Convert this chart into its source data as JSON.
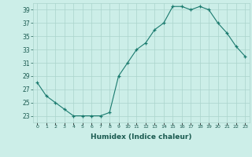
{
  "x": [
    0,
    1,
    2,
    3,
    4,
    5,
    6,
    7,
    8,
    9,
    10,
    11,
    12,
    13,
    14,
    15,
    16,
    17,
    18,
    19,
    20,
    21,
    22,
    23
  ],
  "y": [
    28,
    26,
    25,
    24,
    23,
    23,
    23,
    23,
    23.5,
    29,
    31,
    33,
    34,
    36,
    37,
    39.5,
    39.5,
    39,
    39.5,
    39,
    37,
    35.5,
    33.5,
    32
  ],
  "line_color": "#1a7a6e",
  "marker": "+",
  "xlabel": "Humidex (Indice chaleur)",
  "ylim": [
    22,
    40
  ],
  "xlim": [
    -0.5,
    23.5
  ],
  "yticks": [
    23,
    25,
    27,
    29,
    31,
    33,
    35,
    37,
    39
  ],
  "xtick_labels": [
    "0",
    "1",
    "2",
    "3",
    "4",
    "5",
    "6",
    "7",
    "8",
    "9",
    "10",
    "11",
    "12",
    "13",
    "14",
    "15",
    "16",
    "17",
    "18",
    "19",
    "20",
    "21",
    "22",
    "23"
  ],
  "bg_color": "#cceee8",
  "grid_color": "#aad4cc"
}
